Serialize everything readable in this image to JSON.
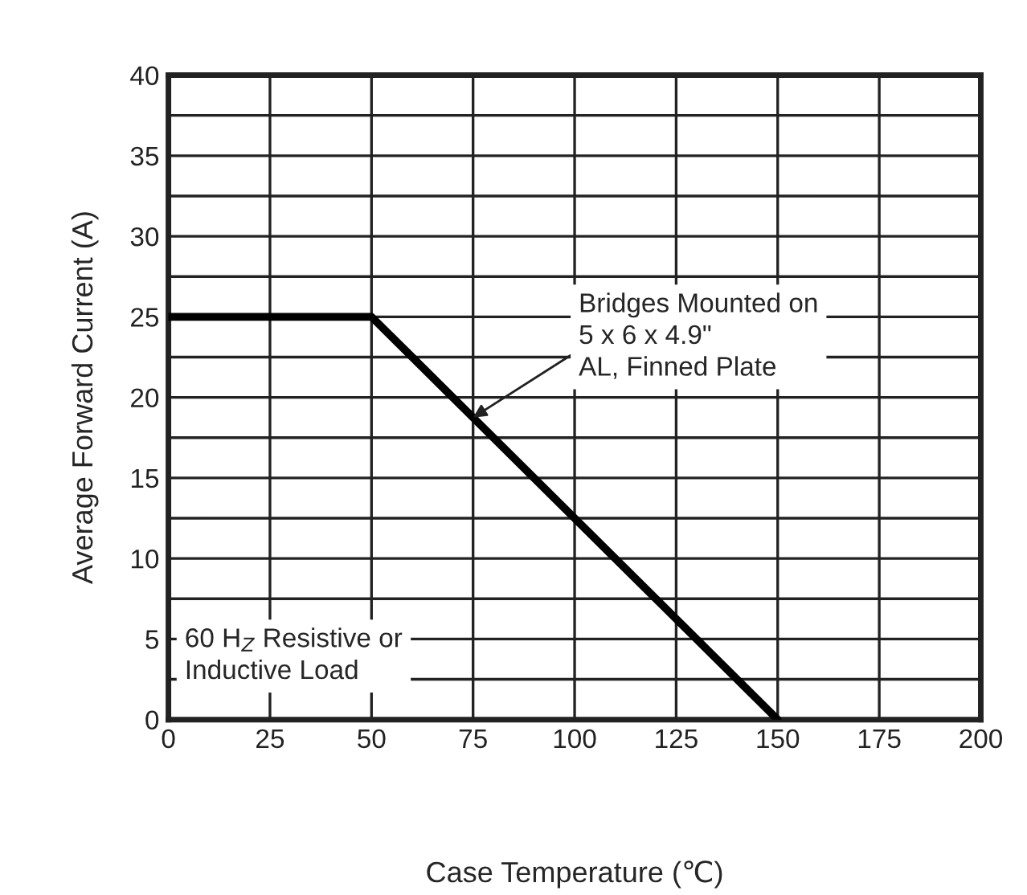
{
  "chart_data": {
    "type": "line",
    "x": [
      0,
      50,
      150
    ],
    "series": [
      {
        "color": "#000000",
        "values": [
          25,
          25,
          0
        ]
      }
    ],
    "xlabel": "Case Temperature (℃)",
    "ylabel": "Average Forward Current (A)",
    "xlim": [
      0,
      200
    ],
    "ylim": [
      0,
      40
    ],
    "xticks": [
      0,
      25,
      50,
      75,
      100,
      125,
      150,
      175,
      200
    ],
    "yticks": [
      0,
      {
        "value": 2.5,
        "label": null
      },
      5,
      {
        "value": 7.5,
        "label": null
      },
      10,
      {
        "value": 12.5,
        "label": null
      },
      15,
      {
        "value": 17.5,
        "label": null
      },
      20,
      {
        "value": 22.5,
        "label": null
      },
      25,
      {
        "value": 27.5,
        "label": null
      },
      30,
      {
        "value": 32.5,
        "label": null
      },
      35,
      {
        "value": 37.5,
        "label": null
      },
      40
    ],
    "grid": true,
    "marker": "none",
    "line_style": "solid",
    "annotations": [
      {
        "text": "Bridges Mounted on\n5 x 6 x 4.9\"\nAL, Finned Plate",
        "x": 75,
        "y": 18.75
      },
      "60 H$_{Z}$ Resistive or\nInductive Load"
    ]
  }
}
